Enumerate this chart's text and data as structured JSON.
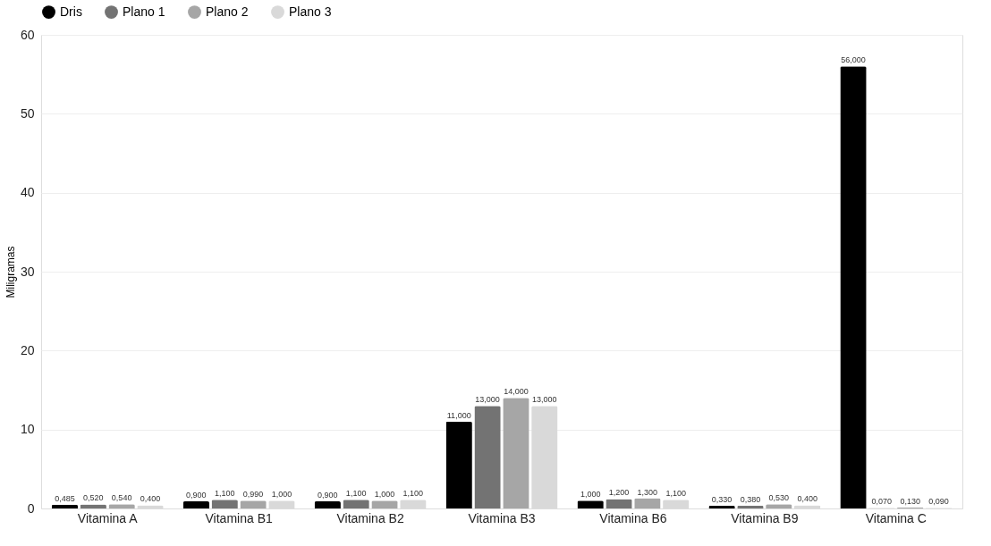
{
  "chart_data": {
    "type": "bar",
    "ylabel": "Miligramas",
    "categories": [
      "Vitamina A",
      "Vitamina B1",
      "Vitamina B2",
      "Vitamina B3",
      "Vitamina B6",
      "Vitamina B9",
      "Vitamina C"
    ],
    "series": [
      {
        "name": "Dris",
        "color": "#000000",
        "values": [
          0.485,
          0.9,
          0.9,
          11,
          1,
          0.33,
          56
        ],
        "value_labels": [
          "0,485",
          "0,900",
          "0,900",
          "11,000",
          "1,000",
          "0,330",
          "56,000"
        ]
      },
      {
        "name": "Plano 1",
        "color": "#737373",
        "values": [
          0.52,
          1.1,
          1.1,
          13,
          1.2,
          0.38,
          0.07
        ],
        "value_labels": [
          "0,520",
          "1,100",
          "1,100",
          "13,000",
          "1,200",
          "0,380",
          "0,070"
        ]
      },
      {
        "name": "Plano 2",
        "color": "#a6a6a6",
        "values": [
          0.54,
          0.99,
          1,
          14,
          1.3,
          0.53,
          0.13
        ],
        "value_labels": [
          "0,540",
          "0,990",
          "1,000",
          "14,000",
          "1,300",
          "0,530",
          "0,130"
        ]
      },
      {
        "name": "Plano 3",
        "color": "#d9d9d9",
        "values": [
          0.4,
          1,
          1.1,
          13,
          1.1,
          0.4,
          0.09
        ],
        "value_labels": [
          "0,400",
          "1,000",
          "1,100",
          "13,000",
          "1,100",
          "0,400",
          "0,090"
        ]
      }
    ],
    "ylim": [
      0,
      60
    ],
    "yticks": [
      0,
      10,
      20,
      30,
      40,
      50,
      60
    ],
    "grid": "y",
    "legend": "top"
  }
}
